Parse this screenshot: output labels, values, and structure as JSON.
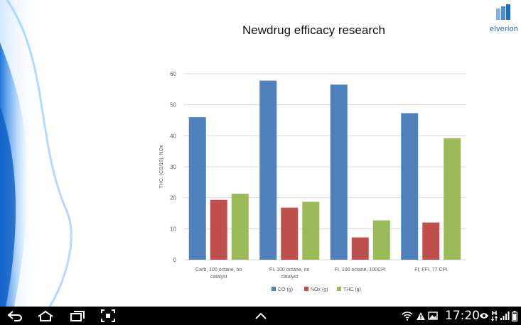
{
  "slide": {
    "title": "Newdrug efficacy research",
    "logo_text": "elverion"
  },
  "chart_data": {
    "type": "bar",
    "categories": [
      "Carb, 100 octane, no catalyst",
      "FI, 100 octane, no catalyst",
      "FI, 100 octane, 100CPI",
      "FI, FFI, 77 CPI"
    ],
    "series": [
      {
        "name": "CO (g)",
        "values": [
          46,
          57.8,
          56.5,
          47.3
        ],
        "color": "#4f81bd"
      },
      {
        "name": "NOx (g)",
        "values": [
          19.3,
          16.8,
          7.2,
          12
        ],
        "color": "#c0504d"
      },
      {
        "name": "THC (g)",
        "values": [
          21.3,
          18.7,
          12.7,
          39.2
        ],
        "color": "#9bbb59"
      }
    ],
    "ylabel": "THC, (CO/10), NOx",
    "ylim": [
      0,
      60
    ],
    "yticks": [
      0,
      10,
      20,
      30,
      40,
      50,
      60
    ],
    "grid": true,
    "legend": "bottom"
  },
  "taskbar": {
    "time": "17:20",
    "icons": [
      "back-icon",
      "home-icon",
      "recent-apps-icon",
      "screenshot-icon",
      "chevron-up-icon",
      "wifi-icon",
      "warning-icon",
      "gallery-icon",
      "eye-icon",
      "hsdpa-icon",
      "signal-icon",
      "battery-icon"
    ]
  }
}
